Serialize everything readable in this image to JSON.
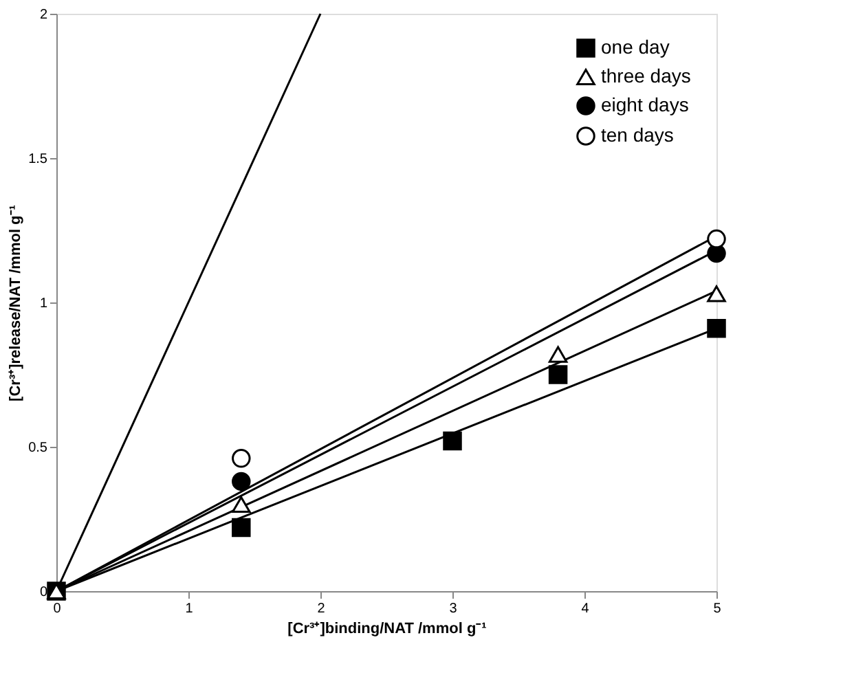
{
  "chart_data": {
    "type": "scatter",
    "xlabel": "[Cr³⁺]binding/NAT /mmol g⁻¹",
    "ylabel": "[Cr³⁺]release/NAT /mmol g⁻¹",
    "xlim": [
      0,
      5
    ],
    "xticks": [
      0,
      1,
      2,
      3,
      4,
      5
    ],
    "ylim": [
      0,
      2
    ],
    "yticks": [
      0,
      0.5,
      1,
      1.5,
      2
    ],
    "grid": false,
    "legend": "top right",
    "series": [
      {
        "name": "one day",
        "marker": "square",
        "color": "#000000",
        "x": [
          0,
          1.4,
          3,
          3.8,
          5
        ],
        "values": [
          0,
          0.22,
          0.52,
          0.75,
          0.91
        ]
      },
      {
        "name": "three days",
        "marker": "triangle",
        "color": "#ffffff",
        "x": [
          0,
          1.4,
          3.8,
          5
        ],
        "values": [
          0,
          0.3,
          0.82,
          1.03
        ]
      },
      {
        "name": "eight days",
        "marker": "circle",
        "color": "#000000",
        "x": [
          1.4,
          5
        ],
        "values": [
          0.38,
          1.17
        ]
      },
      {
        "name": "ten days",
        "marker": "circle",
        "color": "#ffffff",
        "x": [
          1.4,
          5
        ],
        "values": [
          0.46,
          1.22
        ]
      },
      {
        "type": "line",
        "color": "#000000",
        "x": [
          0,
          5
        ],
        "values": [
          0,
          0.91
        ]
      },
      {
        "type": "line",
        "color": "#000000",
        "x": [
          0,
          5
        ],
        "values": [
          0,
          1.04
        ]
      },
      {
        "type": "line",
        "color": "#000000",
        "x": [
          0,
          5
        ],
        "values": [
          0,
          1.18
        ]
      },
      {
        "type": "line",
        "color": "#000000",
        "x": [
          0,
          5
        ],
        "values": [
          0,
          1.23
        ]
      },
      {
        "type": "line",
        "color": "#000000",
        "x": [
          0,
          2
        ],
        "values": [
          0,
          2
        ]
      }
    ]
  }
}
